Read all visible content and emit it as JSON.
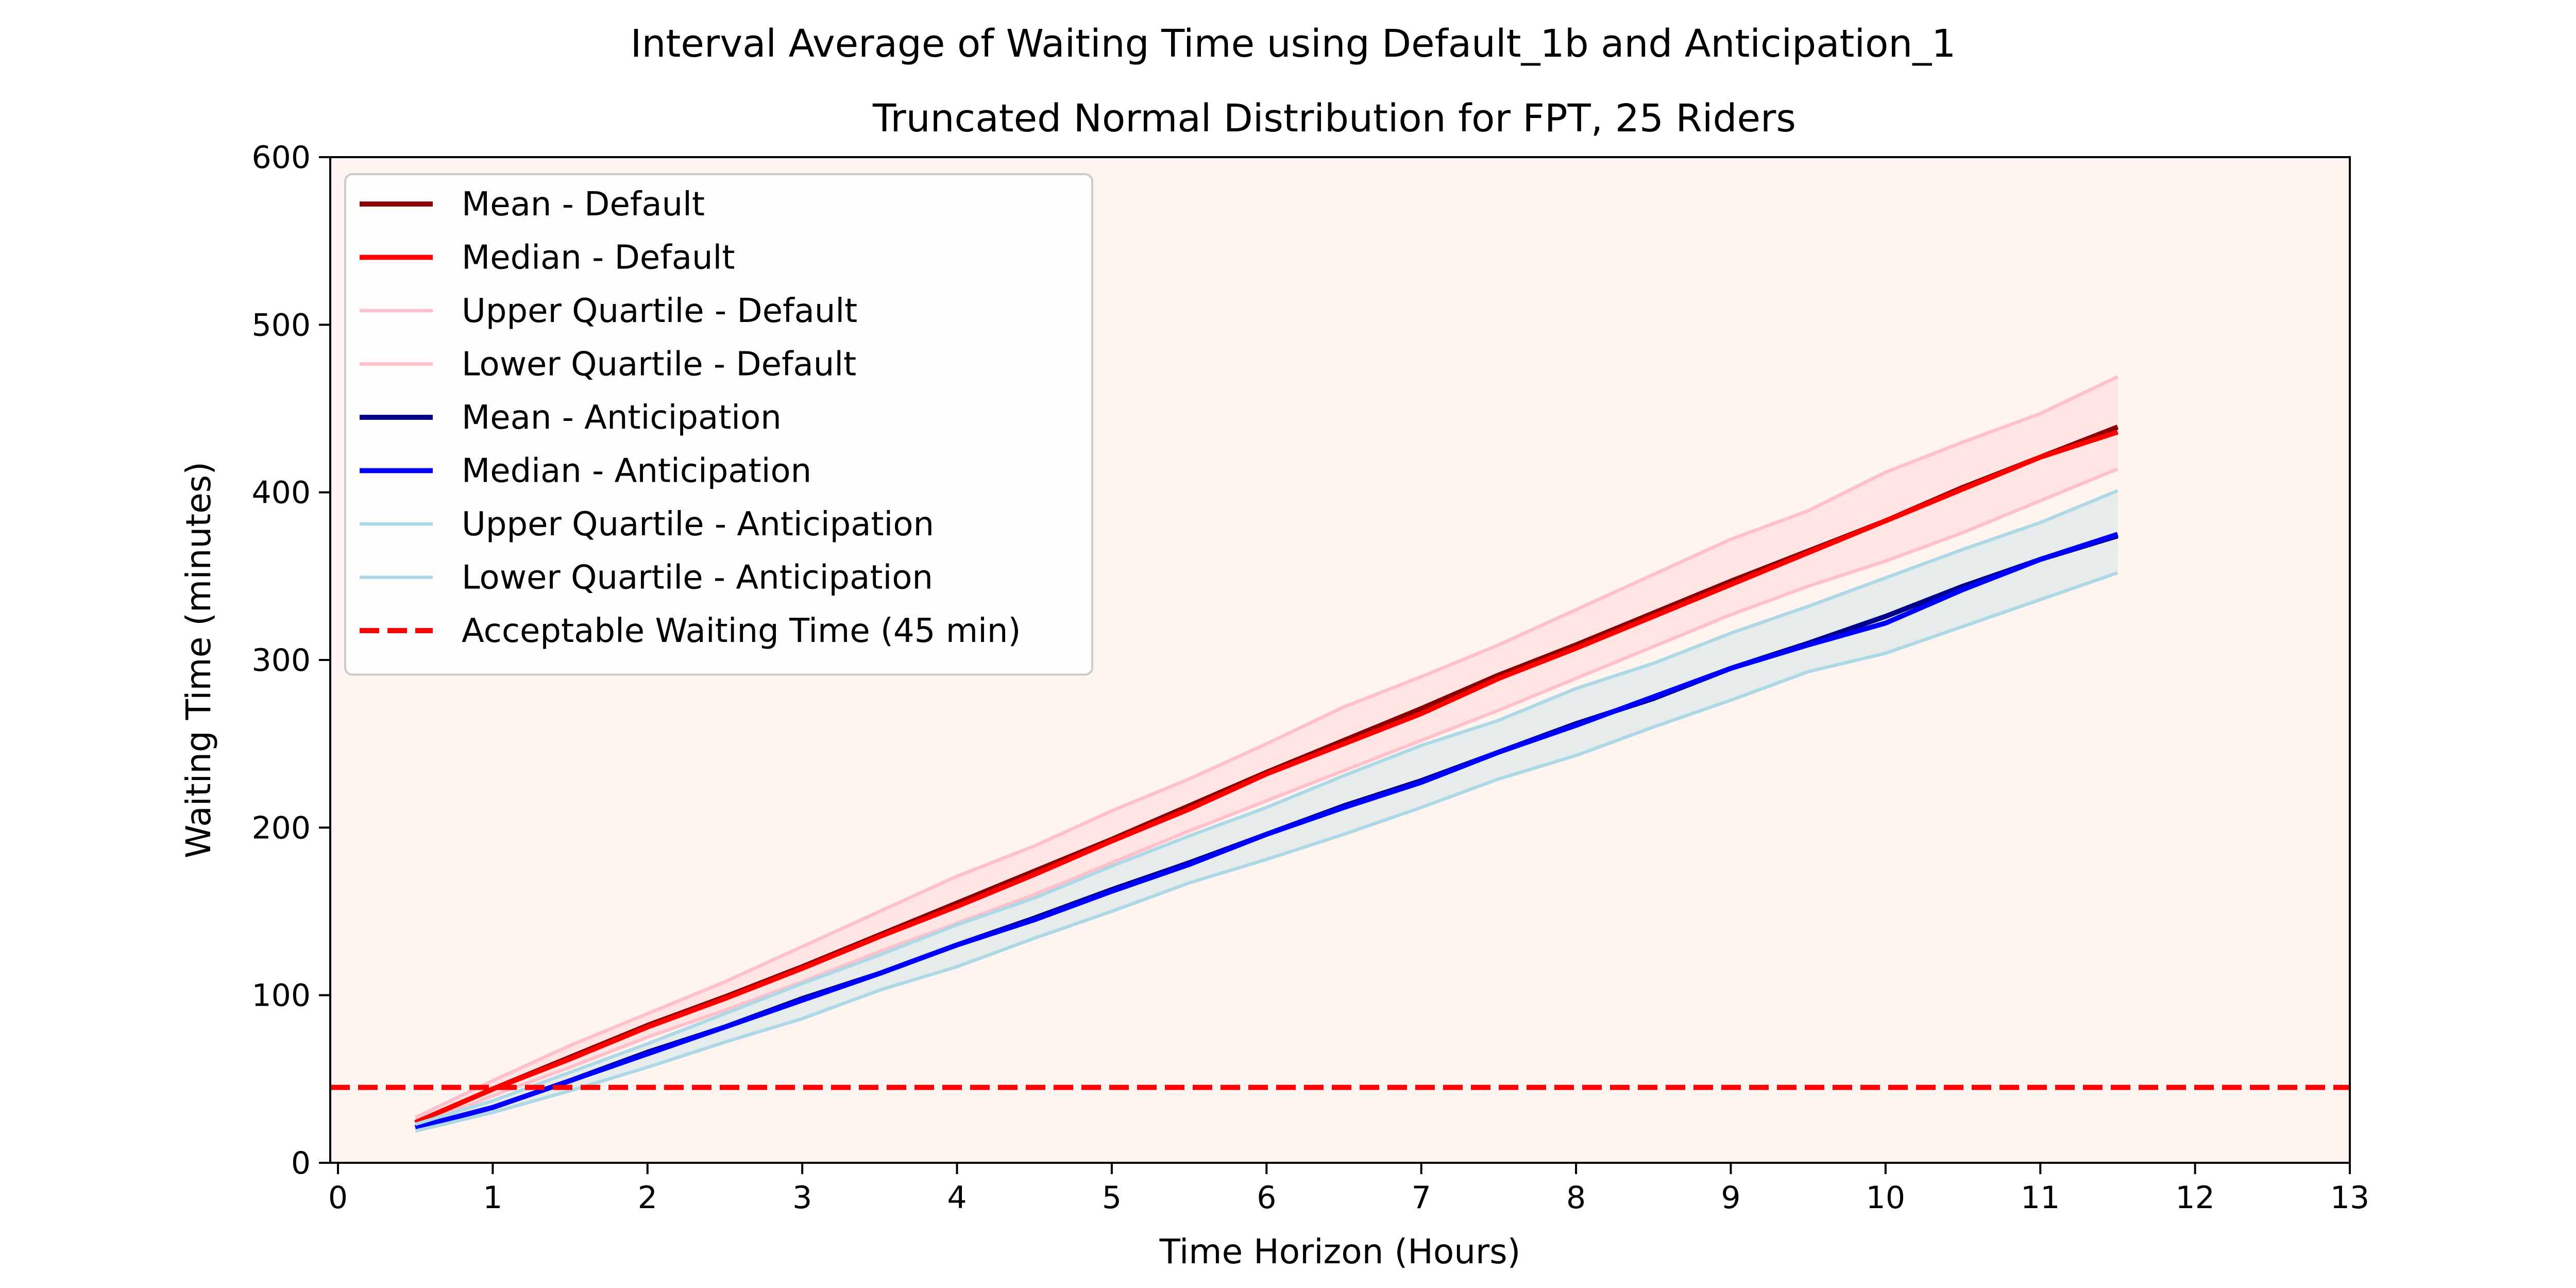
{
  "chart_data": {
    "type": "line",
    "title": "Interval Average of Waiting Time using Default_1b and Anticipation_1",
    "subtitle": "Truncated Normal Distribution for FPT, 25 Riders",
    "xlabel": "Time Horizon (Hours)",
    "ylabel": "Waiting Time (minutes)",
    "xlim": [
      -0.05,
      13
    ],
    "ylim": [
      0,
      600
    ],
    "xticks": [
      0,
      1,
      2,
      3,
      4,
      5,
      6,
      7,
      8,
      9,
      10,
      11,
      12,
      13
    ],
    "yticks": [
      0,
      100,
      200,
      300,
      400,
      500,
      600
    ],
    "grid": false,
    "legend_position": "upper-left",
    "plot_background": "#fff4f0",
    "x": [
      0.5,
      1,
      1.5,
      2,
      2.5,
      3,
      3.5,
      4,
      4.5,
      5,
      5.5,
      6,
      6.5,
      7,
      7.5,
      8,
      8.5,
      9,
      9.5,
      10,
      10.5,
      11,
      11.5
    ],
    "series": [
      {
        "name": "Mean - Default",
        "color": "#8b0000",
        "style": "solid",
        "width": 1.5,
        "values": [
          24,
          44,
          63,
          82,
          99,
          117,
          136,
          155,
          174,
          193,
          213,
          233,
          252,
          271,
          291,
          309,
          328,
          347,
          365,
          383,
          403,
          421,
          439
        ]
      },
      {
        "name": "Median - Default",
        "color": "#ff0000",
        "style": "solid",
        "width": 1.5,
        "values": [
          24,
          44,
          62,
          81,
          98,
          116,
          135,
          153,
          172,
          192,
          211,
          232,
          250,
          268,
          289,
          307,
          326,
          345,
          364,
          383,
          402,
          421,
          436
        ]
      },
      {
        "name": "Upper Quartile - Default",
        "color": "#ffc0cb",
        "style": "solid",
        "width": 1,
        "values": [
          27,
          49,
          70,
          89,
          108,
          129,
          150,
          171,
          189,
          210,
          229,
          250,
          272,
          290,
          309,
          330,
          351,
          372,
          389,
          412,
          430,
          447,
          469
        ]
      },
      {
        "name": "Lower Quartile - Default",
        "color": "#ffc0cb",
        "style": "solid",
        "width": 1,
        "values": [
          22,
          40,
          57,
          75,
          91,
          108,
          126,
          143,
          160,
          179,
          198,
          216,
          234,
          252,
          270,
          289,
          308,
          327,
          344,
          359,
          376,
          395,
          414
        ]
      },
      {
        "name": "Mean - Anticipation",
        "color": "#00008b",
        "style": "solid",
        "width": 1.5,
        "values": [
          21,
          33,
          49,
          66,
          81,
          98,
          113,
          130,
          146,
          163,
          179,
          196,
          213,
          228,
          245,
          262,
          277,
          295,
          310,
          326,
          344,
          360,
          374
        ]
      },
      {
        "name": "Median - Anticipation",
        "color": "#0000ff",
        "style": "solid",
        "width": 1.5,
        "values": [
          21,
          33,
          49,
          65,
          81,
          97,
          113,
          130,
          145,
          162,
          178,
          196,
          212,
          227,
          245,
          261,
          278,
          295,
          309,
          322,
          342,
          360,
          375
        ]
      },
      {
        "name": "Upper Quartile - Anticipation",
        "color": "#add8e6",
        "style": "solid",
        "width": 1,
        "values": [
          23,
          37,
          54,
          71,
          89,
          107,
          124,
          142,
          158,
          177,
          195,
          212,
          231,
          249,
          264,
          283,
          298,
          316,
          332,
          349,
          366,
          382,
          401
        ]
      },
      {
        "name": "Lower Quartile - Anticipation",
        "color": "#add8e6",
        "style": "solid",
        "width": 1,
        "values": [
          19,
          30,
          43,
          57,
          72,
          86,
          103,
          117,
          134,
          150,
          167,
          181,
          196,
          212,
          229,
          243,
          260,
          276,
          293,
          304,
          320,
          336,
          352
        ]
      }
    ],
    "bands": [
      {
        "upper": "Upper Quartile - Default",
        "lower": "Lower Quartile - Default",
        "color": "#ffc0cb",
        "opacity": 0.3
      },
      {
        "upper": "Upper Quartile - Anticipation",
        "lower": "Lower Quartile - Anticipation",
        "color": "#add8e6",
        "opacity": 0.3
      }
    ],
    "reference_line": {
      "name": "Acceptable Waiting Time (45 min)",
      "value": 45,
      "color": "#ff0000",
      "style": "dashed"
    }
  }
}
